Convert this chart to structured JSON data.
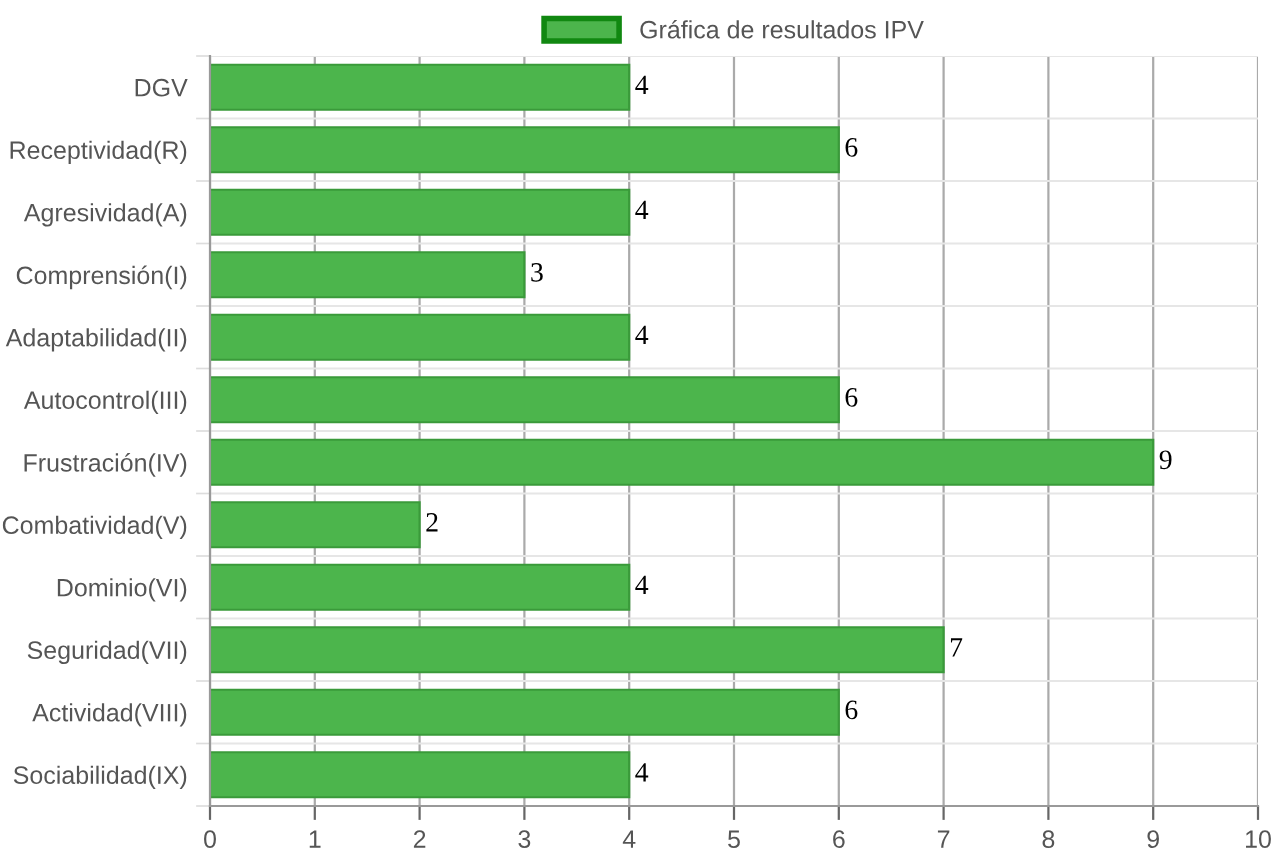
{
  "chart_data": {
    "type": "bar",
    "orientation": "horizontal",
    "categories": [
      "DGV",
      "Receptividad(R)",
      "Agresividad(A)",
      "Comprensión(I)",
      "Adaptabilidad(II)",
      "Autocontrol(III)",
      "Frustración(IV)",
      "Combatividad(V)",
      "Dominio(VI)",
      "Seguridad(VII)",
      "Actividad(VIII)",
      "Sociabilidad(IX)"
    ],
    "series": [
      {
        "name": "Gráfica de resultados IPV",
        "color": "#4cb54c",
        "values": [
          4,
          6,
          4,
          3,
          4,
          6,
          9,
          2,
          4,
          7,
          6,
          4
        ]
      }
    ],
    "xlim": [
      0,
      10
    ],
    "xticks": [
      0,
      1,
      2,
      3,
      4,
      5,
      6,
      7,
      8,
      9,
      10
    ],
    "grid": true,
    "legend": "top",
    "data_labels": true
  }
}
